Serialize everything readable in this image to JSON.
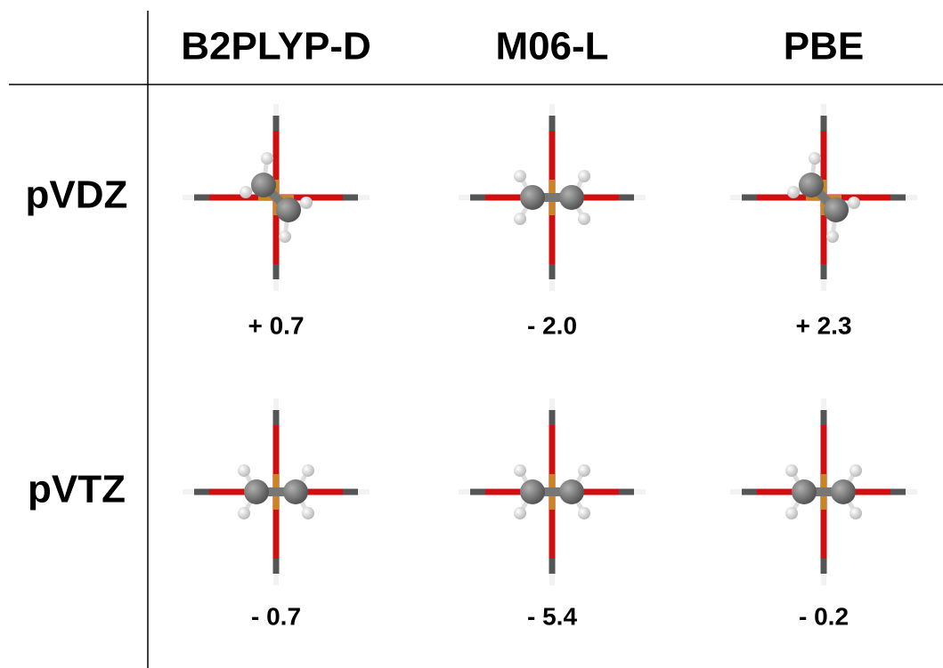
{
  "header": {
    "columns": [
      "B2PLYP-D",
      "M06-L",
      "PBE"
    ]
  },
  "rows": [
    {
      "label": "pVDZ",
      "values": [
        "+ 0.7",
        "- 2.0",
        "+ 2.3"
      ]
    },
    {
      "label": "pVTZ",
      "values": [
        "- 0.7",
        "- 5.4",
        "- 0.2"
      ]
    }
  ]
}
